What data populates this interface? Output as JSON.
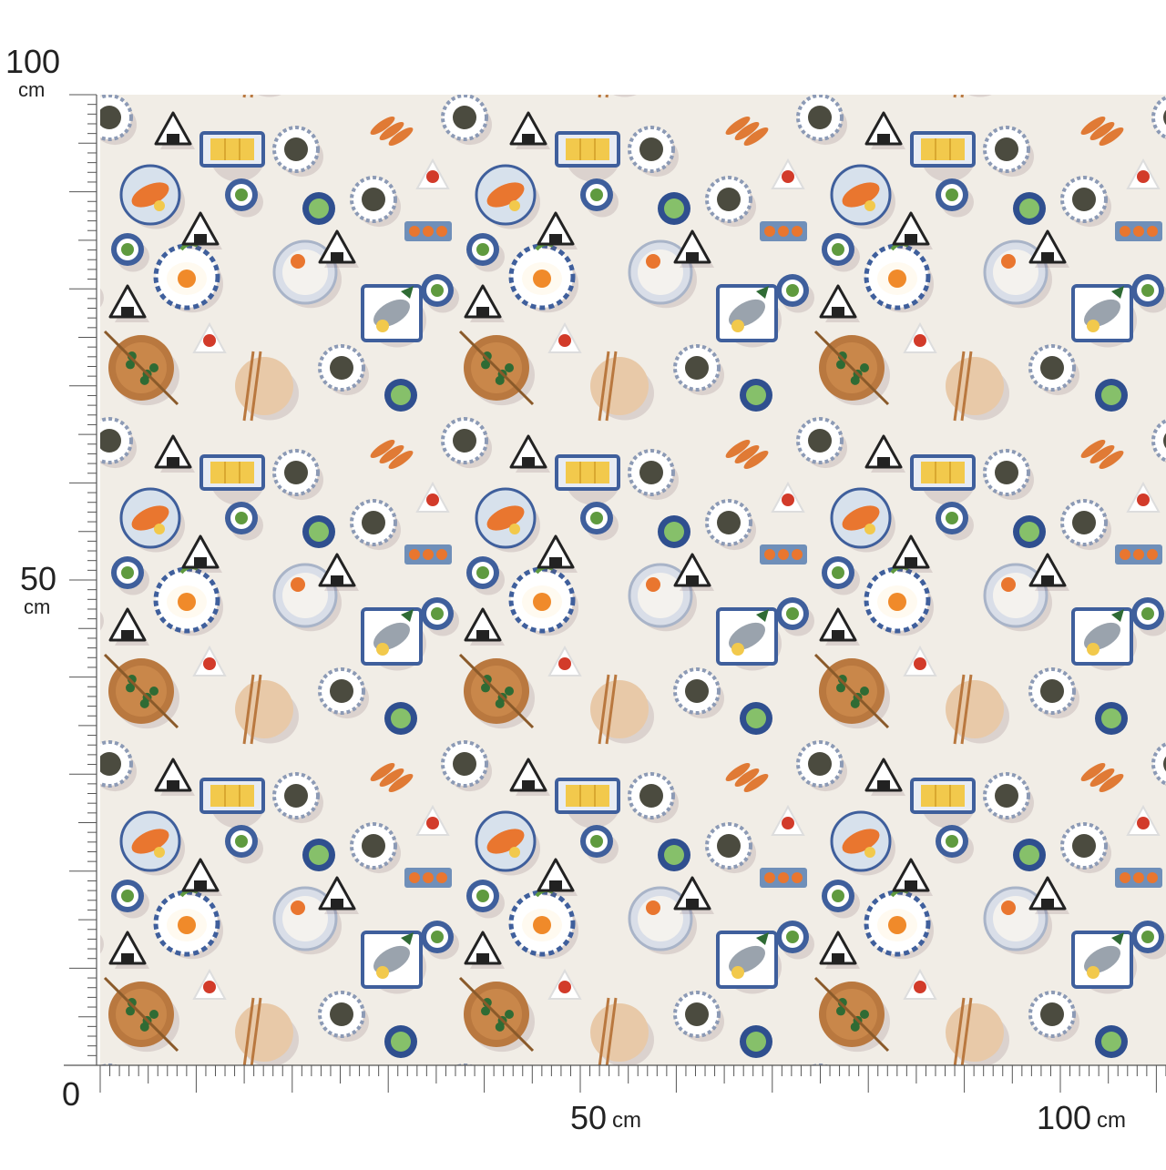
{
  "product": {
    "pattern": "Japanese breakfast food illustrations",
    "background_color": "#f1ede6",
    "accent_colors": [
      "#e9762f",
      "#3f5f9c",
      "#5f9a3f",
      "#b9783f",
      "#d23b2a",
      "#1f2a55"
    ]
  },
  "ruler_left": {
    "top_value": "100",
    "top_unit": "cm",
    "mid_value": "50",
    "mid_unit": "cm"
  },
  "ruler_bottom": {
    "origin": "0",
    "mark_50": "50",
    "mark_50_unit": "cm",
    "mark_100": "100",
    "mark_100_unit": "cm"
  }
}
